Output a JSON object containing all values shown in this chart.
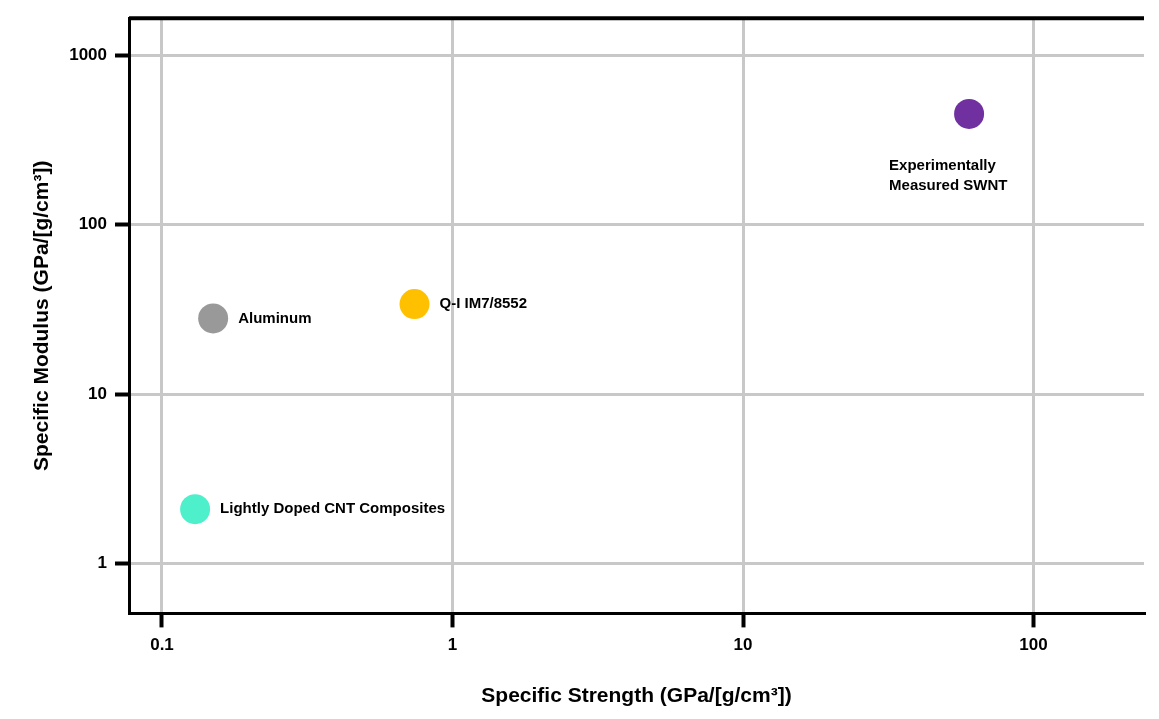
{
  "chart_data": {
    "type": "scatter",
    "xlabel": "Specific Strength (GPa/[g/cm³])",
    "ylabel": "Specific Modulus (GPa/[g/cm³])",
    "x": [
      0.13,
      0.15,
      0.74,
      60
    ],
    "values": [
      2.1,
      28,
      34,
      450
    ],
    "colors": [
      "#4ef0cc",
      "#999999",
      "#ffc000",
      "#7030a0"
    ],
    "xlim": [
      0.077,
      240
    ],
    "ylim": [
      0.51,
      1650
    ],
    "xticks": [
      0.1,
      1,
      10,
      100
    ],
    "yticks": [
      1,
      10,
      100,
      1000
    ],
    "log": "xy",
    "grid": true,
    "legend": false,
    "marker": "circle",
    "annotations": [
      {
        "text": "Lightly Doped CNT Composites",
        "x": 0.13,
        "y": 2.1
      },
      {
        "text": "Aluminum",
        "x": 0.15,
        "y": 28
      },
      {
        "text": "Q-I IM7/8552",
        "x": 0.74,
        "y": 34
      },
      {
        "text": "Experimentally Measured SWNT",
        "x": 60,
        "y": 450
      }
    ]
  }
}
